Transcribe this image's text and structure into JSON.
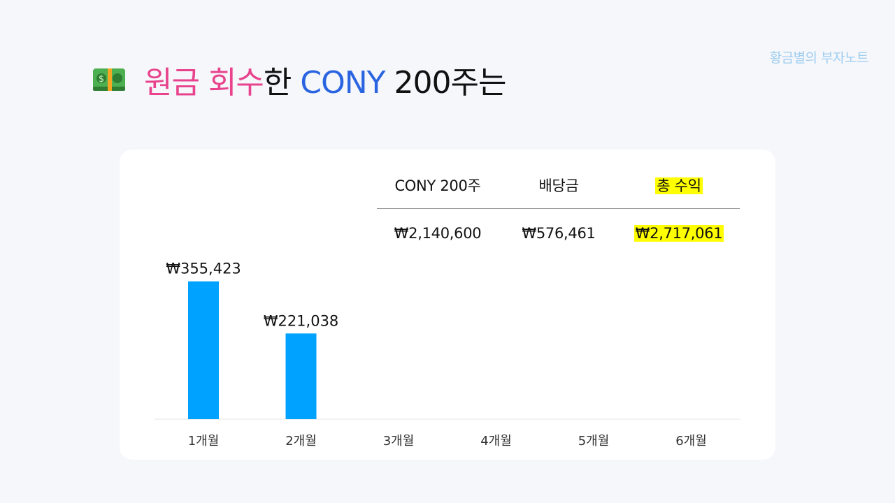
{
  "brand": "황금별의 부자노트",
  "title": {
    "part1": "원금 회수",
    "part2": "한 ",
    "part3": "CONY",
    "part4": " 200주는"
  },
  "summary_table": {
    "headers": [
      "CONY 200주",
      "배당금",
      "총 수익"
    ],
    "values": [
      "₩2,140,600",
      "₩576,461",
      "₩2,717,061"
    ]
  },
  "colors": {
    "bar": "#00a2ff",
    "highlight": "#ffff00",
    "title_pink": "#e8438c",
    "title_blue": "#2a64e0"
  },
  "chart_data": {
    "type": "bar",
    "categories": [
      "1개월",
      "2개월",
      "3개월",
      "4개월",
      "5개월",
      "6개월"
    ],
    "values": [
      355423,
      221038,
      null,
      null,
      null,
      null
    ],
    "data_labels": [
      "₩355,423",
      "₩221,038",
      "",
      "",
      "",
      ""
    ],
    "ylim": [
      0,
      400000
    ],
    "grid": false,
    "title": "",
    "xlabel": "",
    "ylabel": ""
  }
}
